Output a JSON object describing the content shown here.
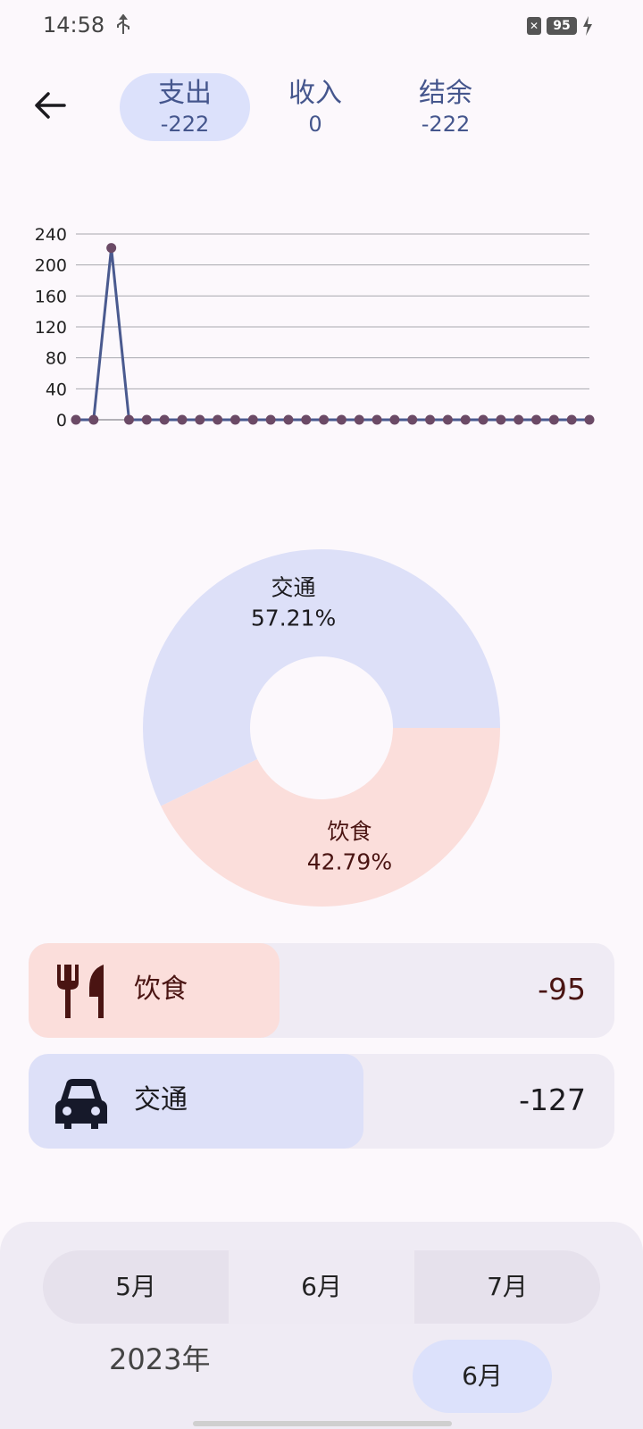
{
  "status_bar": {
    "time": "14:58",
    "battery": "95"
  },
  "tabs": [
    {
      "label": "支出",
      "value": "-222",
      "active": true
    },
    {
      "label": "收入",
      "value": "0",
      "active": false
    },
    {
      "label": "结余",
      "value": "-222",
      "active": false
    }
  ],
  "chart_data": [
    {
      "type": "line",
      "x": [
        1,
        2,
        3,
        4,
        5,
        6,
        7,
        8,
        9,
        10,
        11,
        12,
        13,
        14,
        15,
        16,
        17,
        18,
        19,
        20,
        21,
        22,
        23,
        24,
        25,
        26,
        27,
        28,
        29,
        30
      ],
      "series": [
        {
          "values": [
            0,
            0,
            222,
            0,
            0,
            0,
            0,
            0,
            0,
            0,
            0,
            0,
            0,
            0,
            0,
            0,
            0,
            0,
            0,
            0,
            0,
            0,
            0,
            0,
            0,
            0,
            0,
            0,
            0,
            0
          ]
        }
      ],
      "yticks": [
        "0",
        "40",
        "80",
        "120",
        "160",
        "200",
        "240"
      ],
      "ylim": [
        0,
        240
      ],
      "grid": true,
      "line_color": "#4a5a8f",
      "point_color": "#6b4a66"
    },
    {
      "type": "pie",
      "categories": [
        "交通",
        "饮食"
      ],
      "values": [
        57.21,
        42.79
      ],
      "labels": [
        "57.21%",
        "42.79%"
      ],
      "colors": [
        "#dde0f8",
        "#fbdedb"
      ]
    }
  ],
  "categories": [
    {
      "name": "饮食",
      "amount": "-95",
      "icon": "fork-knife-icon",
      "fill_color": "#fbdedb",
      "text_color": "#4a1412",
      "share": 0.4279
    },
    {
      "name": "交通",
      "amount": "-127",
      "icon": "car-icon",
      "fill_color": "#dde0f8",
      "text_color": "#1c1b1f",
      "share": 0.5721
    }
  ],
  "month_selector": {
    "prev": "5月",
    "current": "6月",
    "next": "7月"
  },
  "year_label": "2023年",
  "month_pill": "6月",
  "colors": {
    "accent": "#45568d",
    "active_tab_bg": "#dce1fb",
    "row_bg": "#efebf4"
  }
}
